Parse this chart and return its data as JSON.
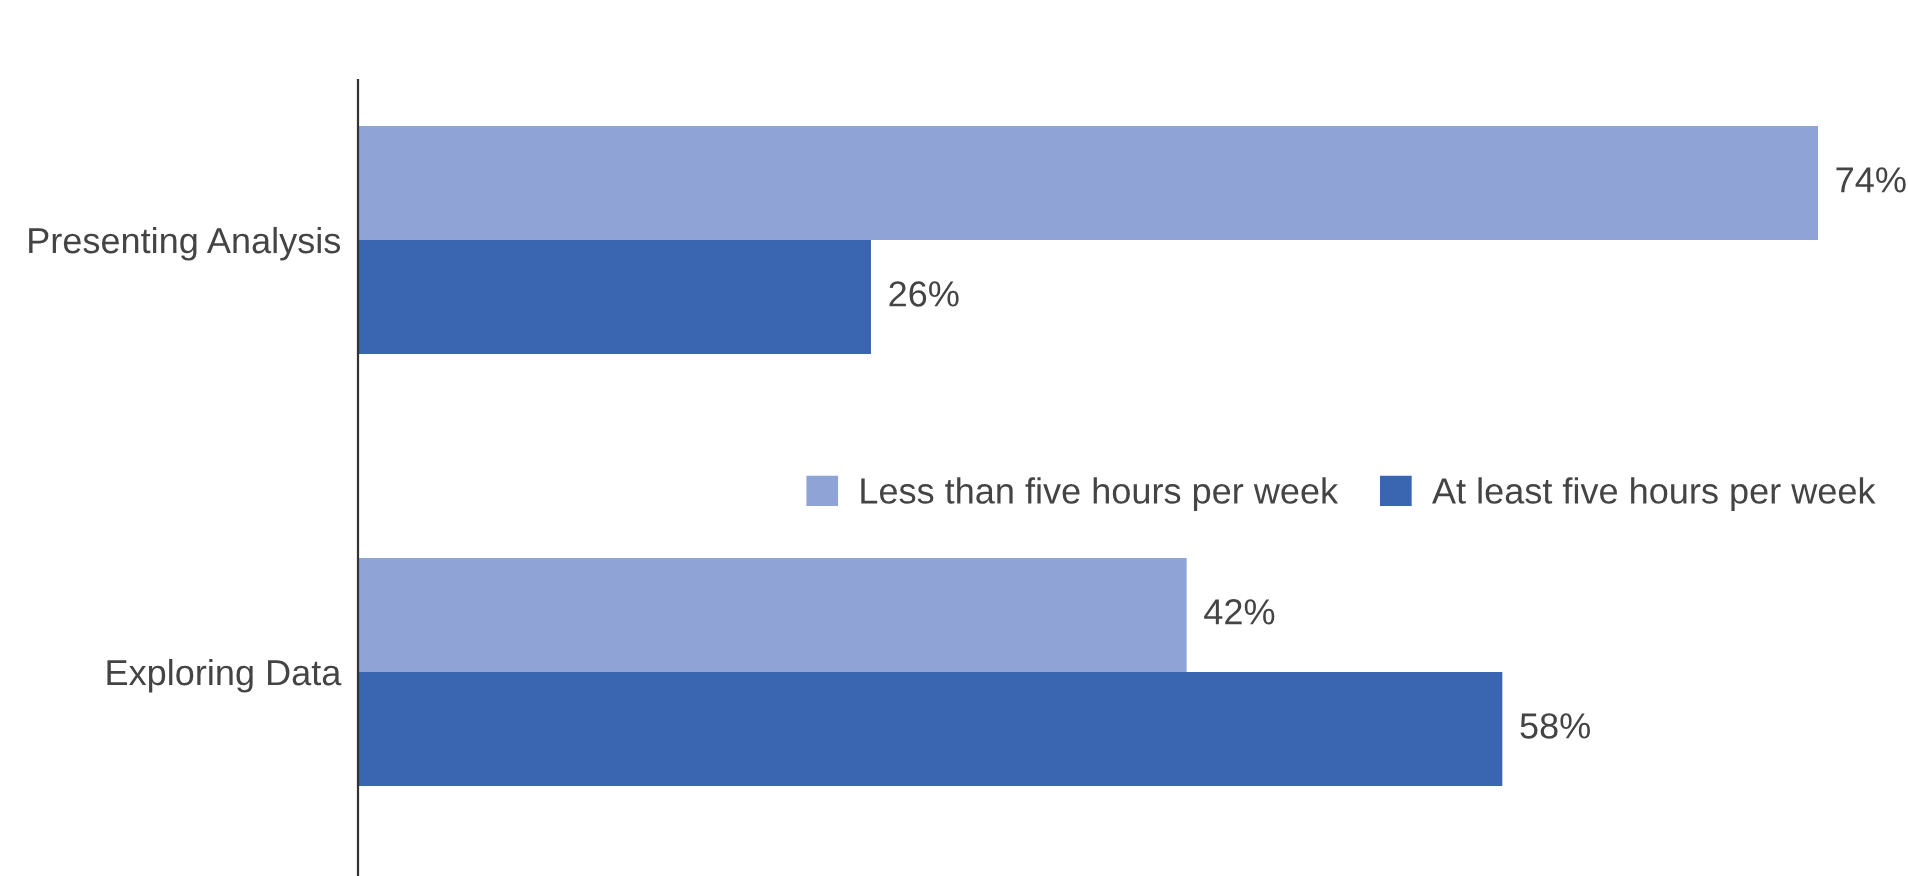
{
  "chart_data": {
    "type": "bar",
    "orientation": "horizontal",
    "categories": [
      "Presenting Analysis",
      "Exploring Data"
    ],
    "series": [
      {
        "name": "Less than five hours per week",
        "color": "#8fa3d6",
        "values": [
          74,
          42
        ],
        "value_labels": [
          "74%",
          "42%"
        ]
      },
      {
        "name": "At least five hours per week",
        "color": "#3a65b0",
        "values": [
          26,
          58
        ],
        "value_labels": [
          "26%",
          "58%"
        ]
      }
    ],
    "legend": "right",
    "grid": false
  }
}
